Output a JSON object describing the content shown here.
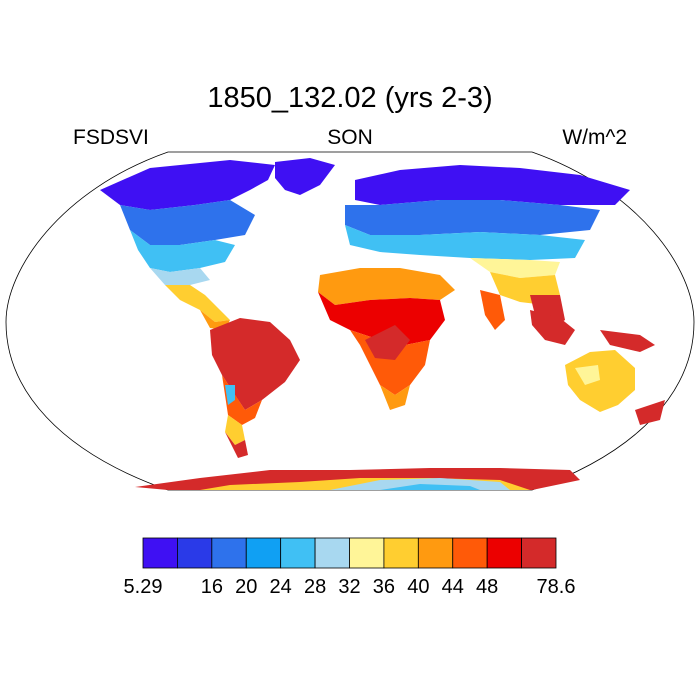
{
  "title": "1850_132.02 (yrs 2-3)",
  "left_label": "FSDSVI",
  "center_label": "SON",
  "right_label": "W/m^2",
  "legend": {
    "colors": [
      "#3f10f3",
      "#2a3ae8",
      "#2e72ec",
      "#10a0f3",
      "#40c0f4",
      "#a8d8f0",
      "#fff598",
      "#ffce30",
      "#ff9a10",
      "#ff5a08",
      "#ec0000",
      "#d42a2a"
    ],
    "tick_labels": [
      "5.29",
      "16",
      "20",
      "24",
      "28",
      "32",
      "36",
      "40",
      "44",
      "48",
      "78.6"
    ]
  }
}
